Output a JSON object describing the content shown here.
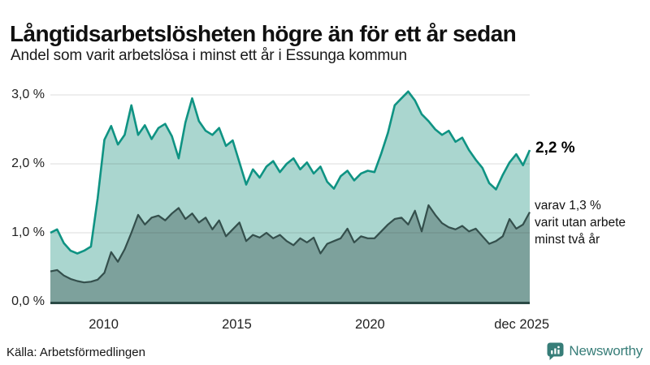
{
  "header": {
    "title": "Långtidsarbetslösheten högre än för ett år sedan",
    "subtitle": "Andel som varit arbetslösa i minst ett år i Essunga kommun"
  },
  "chart_data": {
    "type": "area",
    "title": "Långtidsarbetslösheten högre än för ett år sedan",
    "subtitle": "Andel som varit arbetslösa i minst ett år i Essunga kommun",
    "x_start_year": 2008,
    "x_end_year": 2026,
    "x_resolution": "quarterly",
    "ylim": [
      0,
      3.2
    ],
    "grid": "horizontal",
    "grid_color": "rgba(40,40,40,0.16)",
    "baseline_color": "#2b4a46",
    "y_ticks": [
      {
        "v": 0,
        "label": "0,0 %"
      },
      {
        "v": 1,
        "label": "1,0 %"
      },
      {
        "v": 2,
        "label": "2,0 %"
      },
      {
        "v": 3,
        "label": "3,0 %"
      }
    ],
    "x_ticks": [
      {
        "t": 2010,
        "label": "2010"
      },
      {
        "t": 2015,
        "label": "2015"
      },
      {
        "t": 2020,
        "label": "2020"
      },
      {
        "t": 2025.7,
        "label": "dec 2025"
      }
    ],
    "series": [
      {
        "name": "Andel som varit arbetslösa i minst ett år",
        "color": "#0f9383",
        "fill": "#aad6cf",
        "line_width": 2.6,
        "end_label": "2,2 %",
        "end_value": 2.2,
        "values": [
          1.0,
          1.05,
          0.85,
          0.74,
          0.7,
          0.74,
          0.8,
          1.5,
          2.35,
          2.55,
          2.28,
          2.42,
          2.85,
          2.42,
          2.56,
          2.36,
          2.52,
          2.58,
          2.4,
          2.08,
          2.6,
          2.95,
          2.62,
          2.48,
          2.42,
          2.52,
          2.26,
          2.34,
          2.02,
          1.7,
          1.92,
          1.8,
          1.96,
          2.04,
          1.88,
          2.0,
          2.08,
          1.92,
          2.02,
          1.86,
          1.96,
          1.74,
          1.64,
          1.82,
          1.9,
          1.76,
          1.86,
          1.9,
          1.88,
          2.15,
          2.45,
          2.85,
          2.95,
          3.05,
          2.92,
          2.72,
          2.62,
          2.5,
          2.42,
          2.48,
          2.32,
          2.38,
          2.2,
          2.06,
          1.94,
          1.72,
          1.63,
          1.84,
          2.02,
          2.14,
          1.98,
          2.2
        ]
      },
      {
        "name": "varav utan arbete minst två år",
        "color": "#344f4c",
        "fill": "#7da19c",
        "line_width": 2.2,
        "end_value": 1.3,
        "annotation_lines": [
          "varav 1,3 %",
          "varit utan arbete",
          "minst två år"
        ],
        "values": [
          0.44,
          0.46,
          0.38,
          0.33,
          0.3,
          0.28,
          0.29,
          0.32,
          0.42,
          0.72,
          0.58,
          0.76,
          1.0,
          1.26,
          1.12,
          1.22,
          1.25,
          1.18,
          1.28,
          1.36,
          1.2,
          1.28,
          1.15,
          1.22,
          1.05,
          1.18,
          0.95,
          1.05,
          1.15,
          0.88,
          0.97,
          0.93,
          1.0,
          0.92,
          0.97,
          0.88,
          0.82,
          0.92,
          0.86,
          0.93,
          0.7,
          0.84,
          0.88,
          0.92,
          1.06,
          0.86,
          0.95,
          0.92,
          0.92,
          1.02,
          1.12,
          1.2,
          1.22,
          1.12,
          1.32,
          1.02,
          1.4,
          1.26,
          1.14,
          1.08,
          1.05,
          1.1,
          1.02,
          1.06,
          0.95,
          0.84,
          0.88,
          0.95,
          1.2,
          1.06,
          1.12,
          1.3
        ]
      }
    ]
  },
  "footer": {
    "source": "Källa: Arbetsförmedlingen",
    "brand": "Newsworthy",
    "brand_color": "#377d78"
  }
}
